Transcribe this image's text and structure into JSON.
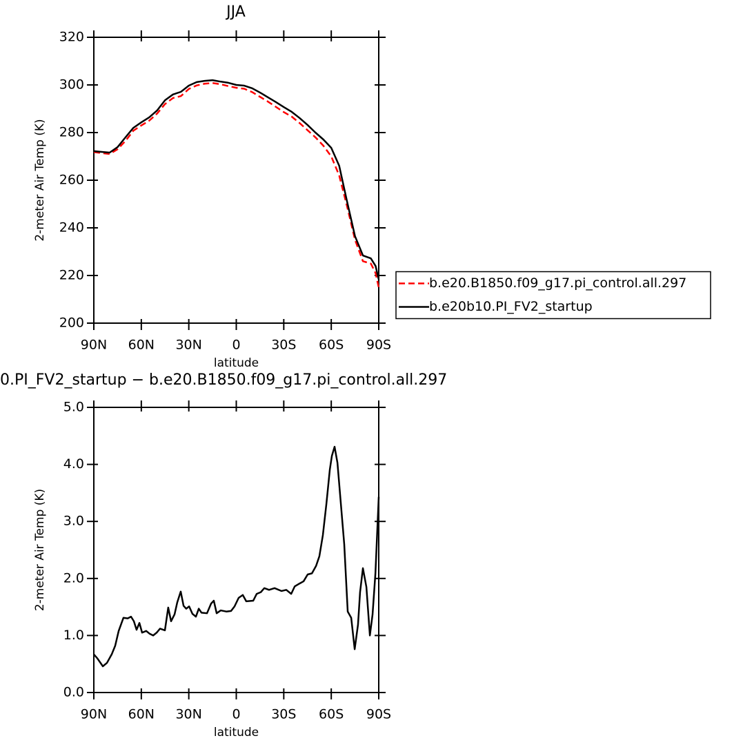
{
  "chart_data": [
    {
      "type": "line",
      "title": "JJA",
      "xlabel": "latitude",
      "ylabel": "2-meter Air Temp (K)",
      "x": [
        90,
        85,
        80,
        75,
        70,
        65,
        60,
        55,
        50,
        45,
        40,
        35,
        30,
        25,
        20,
        15,
        10,
        5,
        0,
        -5,
        -10,
        -15,
        -20,
        -25,
        -30,
        -35,
        -40,
        -45,
        -50,
        -55,
        -60,
        -65,
        -70,
        -75,
        -80,
        -85,
        -88,
        -90
      ],
      "series": [
        {
          "name": "b.e20.B1850.f09_g17.pi_control.all.297",
          "color": "#ff0000",
          "dash": true,
          "values": [
            271.8,
            271.4,
            271,
            273,
            276.5,
            280.8,
            283,
            285,
            288,
            292,
            294.5,
            295.3,
            298.3,
            299.8,
            300.5,
            300.8,
            300.3,
            299.5,
            298.8,
            298.4,
            297,
            295,
            293,
            290.8,
            288.6,
            286.7,
            284,
            281,
            278,
            274.5,
            270,
            262,
            249,
            235,
            226,
            225,
            221,
            215
          ]
        },
        {
          "name": "b.e20b10.PI_FV2_startup",
          "color": "#000000",
          "dash": false,
          "values": [
            272.2,
            271.9,
            271.6,
            273.9,
            278,
            282,
            284.3,
            286.4,
            289.3,
            293.6,
            296,
            297.1,
            299.7,
            301.2,
            301.7,
            302,
            301.4,
            300.9,
            300,
            299.7,
            298.6,
            296.8,
            294.8,
            292.8,
            290.7,
            288.7,
            286.1,
            283.2,
            280,
            277.1,
            273.6,
            266.1,
            251,
            236.5,
            228.4,
            227.2,
            224,
            218.3
          ]
        }
      ],
      "xlim": [
        90,
        -90
      ],
      "xticks": [
        {
          "value": 90,
          "label": "90N"
        },
        {
          "value": 60,
          "label": "60N"
        },
        {
          "value": 30,
          "label": "30N"
        },
        0,
        {
          "value": -30,
          "label": "30S"
        },
        {
          "value": -60,
          "label": "60S"
        },
        {
          "value": -90,
          "label": "90S"
        }
      ],
      "ylim": [
        200,
        320
      ],
      "yticks": [
        200,
        220,
        240,
        260,
        280,
        300,
        320
      ],
      "legend": "right"
    },
    {
      "type": "line",
      "title": "0.PI_FV2_startup − b.e20.B1850.f09_g17.pi_control.all.297",
      "xlabel": "latitude",
      "ylabel": "2-meter Air Temp (K)",
      "x": [
        90,
        87.8,
        84.3,
        81.7,
        78.7,
        76.5,
        74.3,
        71.3,
        68.6,
        66.5,
        64.7,
        63,
        61.2,
        59.5,
        56.9,
        54.7,
        52.5,
        50.3,
        48.2,
        45.1,
        43,
        41.2,
        39,
        37.3,
        35.1,
        33.3,
        31.6,
        29.8,
        27.7,
        25.5,
        23.7,
        22,
        18.5,
        15.9,
        14.2,
        12.4,
        9.8,
        6.3,
        3.3,
        1.1,
        -1.5,
        -4.1,
        -6.3,
        -10.7,
        -12.9,
        -15.5,
        -17.7,
        -20.7,
        -24.2,
        -28.6,
        -31.6,
        -34.7,
        -36.9,
        -39.9,
        -42.5,
        -45.1,
        -47.8,
        -50.4,
        -52.5,
        -54.7,
        -56.9,
        -59.1,
        -60.4,
        -62.1,
        -63.9,
        -66.1,
        -68.2,
        -70.4,
        -72.6,
        -74.8,
        -76.9,
        -78.2,
        -80,
        -82.2,
        -84.4,
        -86.1,
        -87.9,
        -90
      ],
      "color": "#000000",
      "values": [
        0.67,
        0.6,
        0.46,
        0.52,
        0.67,
        0.82,
        1.08,
        1.31,
        1.3,
        1.33,
        1.25,
        1.1,
        1.22,
        1.05,
        1.08,
        1.03,
        1.0,
        1.05,
        1.12,
        1.09,
        1.49,
        1.25,
        1.37,
        1.58,
        1.77,
        1.52,
        1.47,
        1.51,
        1.38,
        1.33,
        1.47,
        1.4,
        1.39,
        1.56,
        1.61,
        1.39,
        1.44,
        1.42,
        1.43,
        1.51,
        1.66,
        1.71,
        1.6,
        1.61,
        1.73,
        1.76,
        1.83,
        1.8,
        1.83,
        1.78,
        1.8,
        1.73,
        1.86,
        1.91,
        1.95,
        2.07,
        2.09,
        2.22,
        2.39,
        2.76,
        3.3,
        3.91,
        4.15,
        4.31,
        4.03,
        3.3,
        2.6,
        1.42,
        1.31,
        0.76,
        1.19,
        1.76,
        2.18,
        1.85,
        1.0,
        1.37,
        2.09,
        3.43
      ],
      "xlim": [
        90,
        -90
      ],
      "xticks": [
        {
          "value": 90,
          "label": "90N"
        },
        {
          "value": 60,
          "label": "60N"
        },
        {
          "value": 30,
          "label": "30N"
        },
        0,
        {
          "value": -30,
          "label": "30S"
        },
        {
          "value": -60,
          "label": "60S"
        },
        {
          "value": -90,
          "label": "90S"
        }
      ],
      "ylim": [
        0,
        5
      ],
      "yticks": [
        {
          "value": 0,
          "label": "0.0"
        },
        {
          "value": 1,
          "label": "1.0"
        },
        {
          "value": 2,
          "label": "2.0"
        },
        {
          "value": 3,
          "label": "3.0"
        },
        {
          "value": 4,
          "label": "4.0"
        },
        {
          "value": 5,
          "label": "5.0"
        }
      ]
    }
  ]
}
